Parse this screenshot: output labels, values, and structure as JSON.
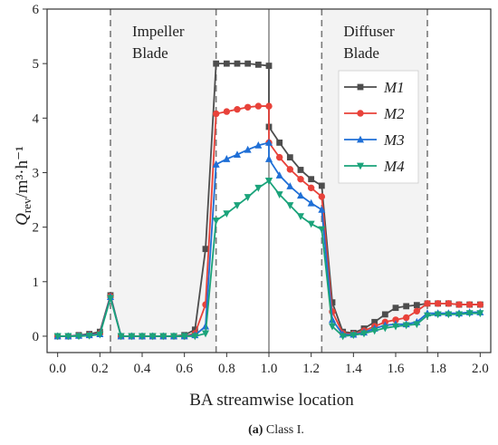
{
  "chart_data": {
    "type": "line",
    "xlabel": "BA streamwise location",
    "ylabel": "Q",
    "ylabel_sub": "rev",
    "ylabel_unit": "/m³·h⁻¹",
    "xlim": [
      -0.05,
      2.05
    ],
    "ylim": [
      -0.3,
      6
    ],
    "xticks": [
      "0.0",
      "0.2",
      "0.4",
      "0.6",
      "0.8",
      "1.0",
      "1.2",
      "1.4",
      "1.6",
      "1.8",
      "2.0"
    ],
    "yticks": [
      "0",
      "1",
      "2",
      "3",
      "4",
      "5",
      "6"
    ],
    "regions": [
      {
        "label_line1": "Impeller",
        "label_line2": "Blade",
        "x0": 0.25,
        "x1": 0.75
      },
      {
        "label_line1": "Diffuser",
        "label_line2": "Blade",
        "x0": 1.25,
        "x1": 1.75
      }
    ],
    "dashed_lines_x": [
      0.25,
      0.75,
      1.25,
      1.75
    ],
    "solid_line_x": 1.0,
    "legend_position": "upper-right",
    "series": [
      {
        "name": "M1",
        "color": "#4d4d4d",
        "marker": "square",
        "x": [
          0.0,
          0.05,
          0.1,
          0.15,
          0.2,
          0.25,
          0.3,
          0.35,
          0.4,
          0.45,
          0.5,
          0.55,
          0.6,
          0.65,
          0.7,
          0.75,
          0.8,
          0.85,
          0.9,
          0.95,
          1.0,
          1.0,
          1.05,
          1.1,
          1.15,
          1.2,
          1.25,
          1.3,
          1.35,
          1.4,
          1.45,
          1.5,
          1.55,
          1.6,
          1.65,
          1.7,
          1.75,
          1.8,
          1.85,
          1.9,
          1.95,
          2.0
        ],
        "y": [
          0.0,
          0.0,
          0.02,
          0.04,
          0.08,
          0.75,
          0.0,
          0.0,
          0.0,
          0.0,
          0.0,
          0.0,
          0.02,
          0.12,
          1.6,
          5.0,
          5.0,
          5.0,
          5.0,
          4.98,
          4.96,
          3.84,
          3.55,
          3.28,
          3.05,
          2.88,
          2.76,
          0.62,
          0.08,
          0.06,
          0.14,
          0.26,
          0.4,
          0.52,
          0.55,
          0.57,
          0.6,
          0.6,
          0.6,
          0.58,
          0.58,
          0.58
        ]
      },
      {
        "name": "M2",
        "color": "#e8423a",
        "marker": "circle",
        "x": [
          0.0,
          0.05,
          0.1,
          0.15,
          0.2,
          0.25,
          0.3,
          0.35,
          0.4,
          0.45,
          0.5,
          0.55,
          0.6,
          0.65,
          0.7,
          0.75,
          0.8,
          0.85,
          0.9,
          0.95,
          1.0,
          1.0,
          1.05,
          1.1,
          1.15,
          1.2,
          1.25,
          1.3,
          1.35,
          1.4,
          1.45,
          1.5,
          1.55,
          1.6,
          1.65,
          1.7,
          1.75,
          1.8,
          1.85,
          1.9,
          1.95,
          2.0
        ],
        "y": [
          0.0,
          0.0,
          0.01,
          0.02,
          0.05,
          0.73,
          0.0,
          0.0,
          0.0,
          0.0,
          0.0,
          0.0,
          0.0,
          0.05,
          0.58,
          4.08,
          4.12,
          4.16,
          4.2,
          4.22,
          4.22,
          3.55,
          3.28,
          3.06,
          2.88,
          2.72,
          2.56,
          0.45,
          0.05,
          0.04,
          0.1,
          0.18,
          0.26,
          0.3,
          0.34,
          0.46,
          0.6,
          0.6,
          0.6,
          0.58,
          0.58,
          0.58
        ]
      },
      {
        "name": "M3",
        "color": "#1f6fd6",
        "marker": "triangle-up",
        "x": [
          0.0,
          0.05,
          0.1,
          0.15,
          0.2,
          0.25,
          0.3,
          0.35,
          0.4,
          0.45,
          0.5,
          0.55,
          0.6,
          0.65,
          0.7,
          0.75,
          0.8,
          0.85,
          0.9,
          0.95,
          1.0,
          1.0,
          1.05,
          1.1,
          1.15,
          1.2,
          1.25,
          1.3,
          1.35,
          1.4,
          1.45,
          1.5,
          1.55,
          1.6,
          1.65,
          1.7,
          1.75,
          1.8,
          1.85,
          1.9,
          1.95,
          2.0
        ],
        "y": [
          0.0,
          0.0,
          0.01,
          0.02,
          0.04,
          0.72,
          0.0,
          0.0,
          0.0,
          0.0,
          0.0,
          0.0,
          0.0,
          0.02,
          0.18,
          3.15,
          3.25,
          3.33,
          3.42,
          3.5,
          3.55,
          3.25,
          2.95,
          2.75,
          2.58,
          2.44,
          2.32,
          0.3,
          0.03,
          0.03,
          0.07,
          0.14,
          0.2,
          0.22,
          0.22,
          0.26,
          0.42,
          0.42,
          0.42,
          0.42,
          0.44,
          0.44
        ]
      },
      {
        "name": "M4",
        "color": "#1aa37a",
        "marker": "triangle-down",
        "x": [
          0.0,
          0.05,
          0.1,
          0.15,
          0.2,
          0.25,
          0.3,
          0.35,
          0.4,
          0.45,
          0.5,
          0.55,
          0.6,
          0.65,
          0.7,
          0.75,
          0.8,
          0.85,
          0.9,
          0.95,
          1.0,
          1.0,
          1.05,
          1.1,
          1.15,
          1.2,
          1.25,
          1.3,
          1.35,
          1.4,
          1.45,
          1.5,
          1.55,
          1.6,
          1.65,
          1.7,
          1.75,
          1.8,
          1.85,
          1.9,
          1.95,
          2.0
        ],
        "y": [
          0.0,
          0.0,
          0.0,
          0.01,
          0.03,
          0.7,
          0.0,
          0.0,
          0.0,
          0.0,
          0.0,
          0.0,
          0.0,
          0.0,
          0.05,
          2.12,
          2.25,
          2.4,
          2.55,
          2.72,
          2.85,
          2.85,
          2.6,
          2.4,
          2.2,
          2.06,
          1.96,
          0.18,
          0.0,
          0.02,
          0.05,
          0.1,
          0.15,
          0.18,
          0.2,
          0.22,
          0.38,
          0.4,
          0.4,
          0.4,
          0.42,
          0.42
        ]
      }
    ]
  },
  "caption": {
    "label": "(a)",
    "text": " Class I."
  }
}
